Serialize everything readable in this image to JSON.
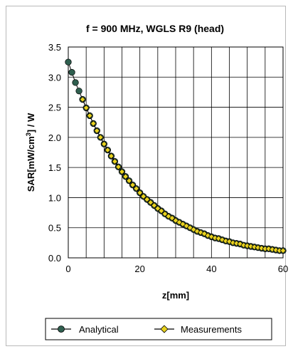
{
  "chart_data": {
    "type": "line",
    "title": "f = 900 MHz, WGLS R9 (head)",
    "xlabel": "z[mm]",
    "ylabel_parts": [
      "SAR[mW/cm",
      "3",
      "] / W"
    ],
    "xlim": [
      0,
      60
    ],
    "ylim": [
      0,
      3.5
    ],
    "x_ticks": [
      "0",
      "20",
      "40",
      "60"
    ],
    "y_ticks": [
      "0.0",
      "0.5",
      "1.0",
      "1.5",
      "2.0",
      "2.5",
      "3.0",
      "3.5"
    ],
    "grid": true,
    "legend_position": "bottom",
    "series": [
      {
        "name": "Analytical",
        "color": "#2f5f4f",
        "marker": "circle",
        "x": [
          0,
          1,
          2,
          3,
          4,
          5,
          6,
          7,
          8,
          9,
          10,
          11,
          12,
          13,
          14,
          15,
          16,
          17,
          18,
          19,
          20,
          21,
          22,
          23,
          24,
          25,
          26,
          27,
          28,
          29,
          30,
          31,
          32,
          33,
          34,
          35,
          36,
          37,
          38,
          39,
          40,
          41,
          42,
          43,
          44,
          45,
          46,
          47,
          48,
          49,
          50,
          51,
          52,
          53,
          54,
          55,
          56,
          57,
          58,
          59,
          60
        ],
        "values": [
          3.25,
          3.08,
          2.91,
          2.77,
          2.63,
          2.49,
          2.36,
          2.23,
          2.11,
          2.0,
          1.89,
          1.79,
          1.69,
          1.6,
          1.51,
          1.43,
          1.35,
          1.28,
          1.21,
          1.15,
          1.08,
          1.02,
          0.97,
          0.92,
          0.87,
          0.82,
          0.78,
          0.73,
          0.69,
          0.66,
          0.62,
          0.59,
          0.56,
          0.53,
          0.5,
          0.47,
          0.44,
          0.42,
          0.4,
          0.37,
          0.35,
          0.33,
          0.32,
          0.3,
          0.28,
          0.27,
          0.25,
          0.24,
          0.23,
          0.21,
          0.2,
          0.19,
          0.18,
          0.17,
          0.16,
          0.15,
          0.15,
          0.14,
          0.13,
          0.12,
          0.12
        ]
      },
      {
        "name": "Measurements",
        "color": "#e8d21e",
        "marker": "diamond",
        "x": [
          4,
          5,
          6,
          7,
          8,
          9,
          10,
          11,
          12,
          13,
          14,
          15,
          16,
          17,
          18,
          19,
          20,
          21,
          22,
          23,
          24,
          25,
          26,
          27,
          28,
          29,
          30,
          31,
          32,
          33,
          34,
          35,
          36,
          37,
          38,
          39,
          40,
          41,
          42,
          43,
          44,
          45,
          46,
          47,
          48,
          49,
          50,
          51,
          52,
          53,
          54,
          55,
          56,
          57,
          58,
          59,
          60
        ],
        "values": [
          2.63,
          2.49,
          2.36,
          2.23,
          2.11,
          2.0,
          1.89,
          1.79,
          1.69,
          1.6,
          1.51,
          1.43,
          1.35,
          1.28,
          1.21,
          1.15,
          1.08,
          1.02,
          0.97,
          0.92,
          0.87,
          0.82,
          0.78,
          0.73,
          0.69,
          0.66,
          0.62,
          0.59,
          0.56,
          0.53,
          0.5,
          0.47,
          0.44,
          0.42,
          0.4,
          0.37,
          0.35,
          0.33,
          0.32,
          0.3,
          0.28,
          0.27,
          0.25,
          0.24,
          0.23,
          0.21,
          0.2,
          0.19,
          0.18,
          0.17,
          0.16,
          0.15,
          0.15,
          0.14,
          0.13,
          0.12,
          0.12
        ]
      }
    ]
  }
}
